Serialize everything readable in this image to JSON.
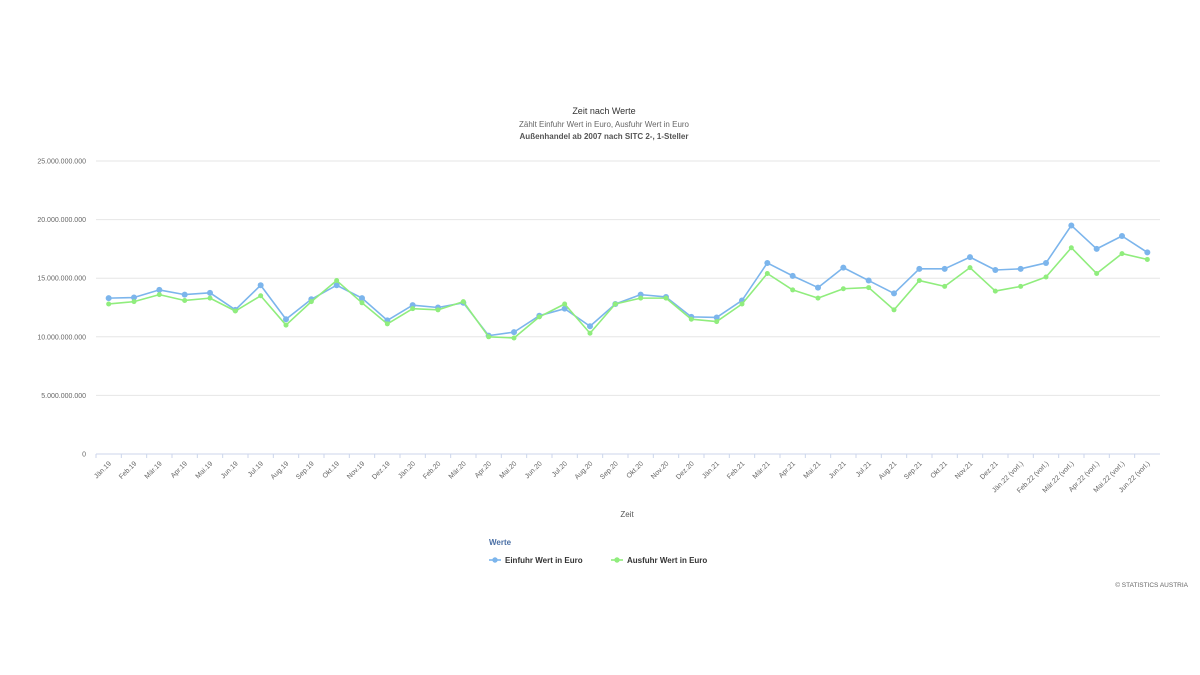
{
  "chart_data": {
    "type": "line",
    "title": "Zeit nach Werte",
    "subtitle": "Zählt Einfuhr Wert in Euro, Ausfuhr Wert in Euro",
    "subtitle2": "Außenhandel ab 2007 nach SITC 2-, 1-Steller",
    "xlabel": "Zeit",
    "ylabel": "",
    "ylim": [
      0,
      25000000000
    ],
    "yticks": [
      0,
      5000000000,
      10000000000,
      15000000000,
      20000000000,
      25000000000
    ],
    "ytick_labels": [
      "0",
      "5.000.000.000",
      "10.000.000.000",
      "15.000.000.000",
      "20.000.000.000",
      "25.000.000.000"
    ],
    "grid": true,
    "legend_position": "bottom-center",
    "legend_title": "Werte",
    "categories": [
      "Jän.19",
      "Feb.19",
      "Mär.19",
      "Apr.19",
      "Mai.19",
      "Jun.19",
      "Jul.19",
      "Aug.19",
      "Sep.19",
      "Okt.19",
      "Nov.19",
      "Dez.19",
      "Jän.20",
      "Feb.20",
      "Mär.20",
      "Apr.20",
      "Mai.20",
      "Jun.20",
      "Jul.20",
      "Aug.20",
      "Sep.20",
      "Okt.20",
      "Nov.20",
      "Dez.20",
      "Jän.21",
      "Feb.21",
      "Mär.21",
      "Apr.21",
      "Mai.21",
      "Jun.21",
      "Jul.21",
      "Aug.21",
      "Sep.21",
      "Okt.21",
      "Nov.21",
      "Dez.21",
      "Jän.22 (vorl.)",
      "Feb.22 (vorl.)",
      "Mär.22 (vorl.)",
      "Apr.22 (vorl.)",
      "Mai.22 (vorl.)",
      "Jun.22 (vorl.)"
    ],
    "series": [
      {
        "name": "Einfuhr Wert in Euro",
        "color": "#7cb5ec",
        "values": [
          13300000000,
          13350000000,
          14000000000,
          13600000000,
          13750000000,
          12300000000,
          14400000000,
          11500000000,
          13200000000,
          14400000000,
          13300000000,
          11400000000,
          12700000000,
          12500000000,
          12900000000,
          10100000000,
          10400000000,
          11800000000,
          12400000000,
          10900000000,
          12800000000,
          13600000000,
          13400000000,
          11700000000,
          11650000000,
          13100000000,
          16300000000,
          15200000000,
          14200000000,
          15900000000,
          14800000000,
          13700000000,
          15800000000,
          15800000000,
          16800000000,
          15700000000,
          15800000000,
          16300000000,
          19500000000,
          17500000000,
          18600000000,
          17200000000
        ]
      },
      {
        "name": "Ausfuhr Wert in Euro",
        "color": "#90ed7d",
        "values": [
          12800000000,
          13000000000,
          13600000000,
          13100000000,
          13300000000,
          12200000000,
          13500000000,
          11000000000,
          13000000000,
          14800000000,
          12900000000,
          11100000000,
          12400000000,
          12300000000,
          13000000000,
          10000000000,
          9900000000,
          11700000000,
          12800000000,
          10300000000,
          12800000000,
          13300000000,
          13300000000,
          11500000000,
          11300000000,
          12800000000,
          15400000000,
          14000000000,
          13300000000,
          14100000000,
          14200000000,
          12300000000,
          14800000000,
          14300000000,
          15900000000,
          13900000000,
          14300000000,
          15100000000,
          17600000000,
          15400000000,
          17100000000,
          16600000000
        ]
      }
    ],
    "credits": "© STATISTICS AUSTRIA"
  }
}
